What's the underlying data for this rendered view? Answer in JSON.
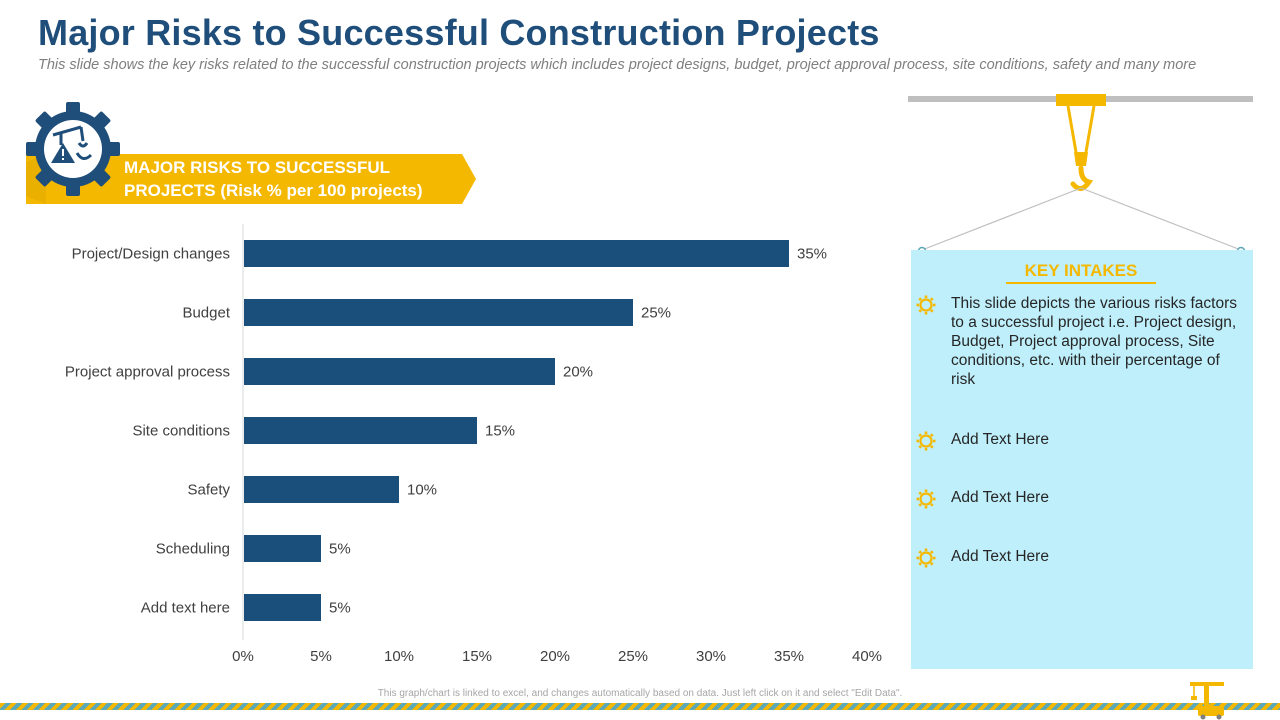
{
  "header": {
    "title": "Major Risks to Successful Construction Projects",
    "subtitle": "This slide shows the key risks related to the successful construction projects which includes project designs, budget, project approval process, site conditions, safety and many more"
  },
  "banner": {
    "text": "MAJOR RISKS TO SUCCESSFUL PROJECTS (Risk % per 100 projects)",
    "icon": "gear-warning-crane-icon"
  },
  "colors": {
    "title": "#1e4e79",
    "bar": "#1a4f7c",
    "accent": "#f5b800",
    "panel": "#bfeffb",
    "gear": "#1e4e79"
  },
  "chart_data": {
    "type": "bar",
    "orientation": "horizontal",
    "title": "MAJOR RISKS TO SUCCESSFUL PROJECTS (Risk % per 100 projects)",
    "xlabel": "",
    "ylabel": "",
    "categories": [
      "Project/Design changes",
      "Budget",
      "Project approval process",
      "Site conditions",
      "Safety",
      "Scheduling",
      "Add text here"
    ],
    "values": [
      35,
      25,
      20,
      15,
      10,
      5,
      5
    ],
    "value_labels": [
      "35%",
      "25%",
      "20%",
      "15%",
      "10%",
      "5%",
      "5%"
    ],
    "xlim": [
      0,
      40
    ],
    "ticks": [
      0,
      5,
      10,
      15,
      20,
      25,
      30,
      35,
      40
    ],
    "tick_labels": [
      "0%",
      "5%",
      "10%",
      "15%",
      "20%",
      "25%",
      "30%",
      "35%",
      "40%"
    ],
    "grid": false,
    "legend": "none"
  },
  "intakes": {
    "title": "KEY INTAKES",
    "items": [
      "This slide depicts the various risks factors to a successful project i.e. Project design, Budget, Project approval process, Site conditions, etc. with their percentage of risk",
      "Add Text Here",
      "Add Text Here",
      "Add Text Here"
    ],
    "bullet_icon": "gear-bullet-icon"
  },
  "footer": {
    "note": "This graph/chart is linked to excel, and changes automatically based on data. Just left click on it and select \"Edit Data\".",
    "icon": "construction-crane-icon"
  }
}
